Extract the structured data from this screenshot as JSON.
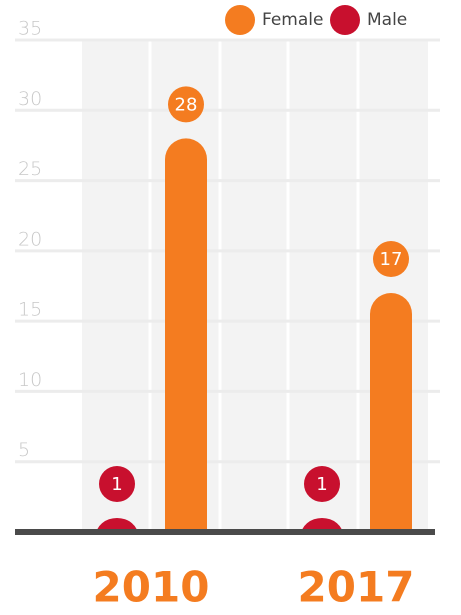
{
  "chart_data": {
    "type": "bar",
    "categories": [
      "2010",
      "2017"
    ],
    "series": [
      {
        "name": "Male",
        "color": "#c8102e",
        "values": [
          1,
          1
        ]
      },
      {
        "name": "Female",
        "color": "#f47c20",
        "values": [
          28,
          17
        ]
      }
    ],
    "ylim": [
      0,
      35
    ],
    "yticks": [
      5,
      10,
      15,
      20,
      25,
      30,
      35
    ],
    "grid": true,
    "legend": "top-right"
  }
}
